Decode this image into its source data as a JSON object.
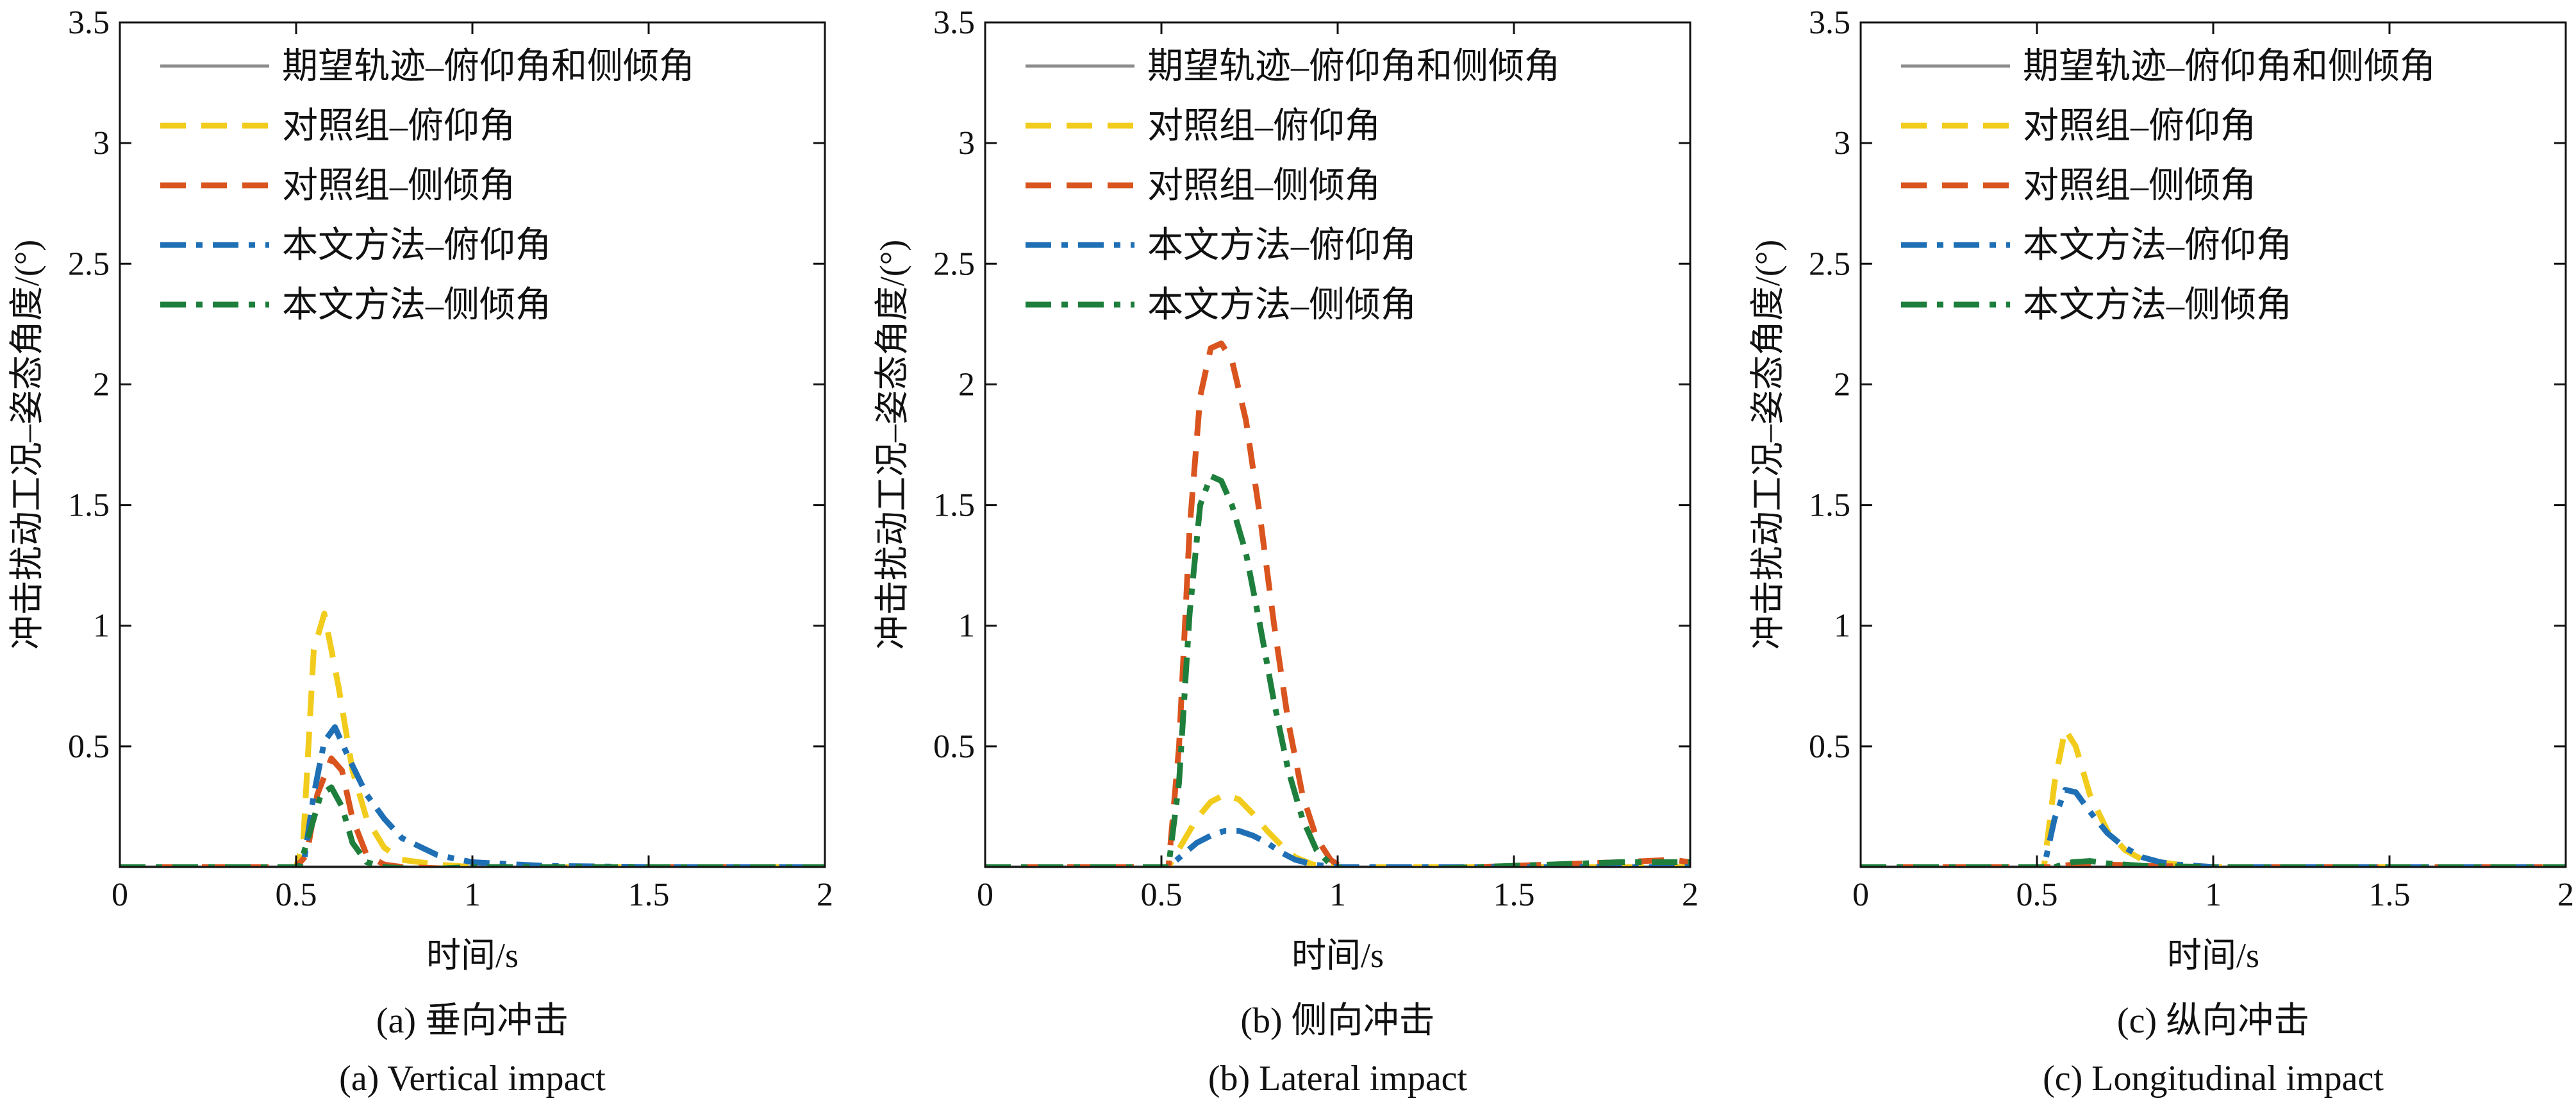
{
  "colors": {
    "desired": "#8c8c8c",
    "control_pitch": "#f2cc1c",
    "control_roll": "#d9541e",
    "proposed_pitch": "#1f6fb5",
    "proposed_roll": "#1e7f3c",
    "axis": "#111111"
  },
  "chart_data": [
    {
      "type": "line",
      "caption_cn": "(a) 垂向冲击",
      "caption_en": "(a) Vertical impact",
      "xlabel": "时间/s",
      "ylabel": "冲击扰动工况–姿态角度/(°)",
      "xlim": [
        0,
        2
      ],
      "ylim": [
        0,
        3.5
      ],
      "xticks": [
        "0",
        "0.5",
        "1",
        "1.5",
        "2"
      ],
      "yticks": [
        "0.5",
        "1",
        "1.5",
        "2",
        "2.5",
        "3",
        "3.5"
      ],
      "legend_position": "top-left",
      "series": [
        {
          "name": "期望轨迹–俯仰角和侧倾角",
          "style": "solid",
          "color_key": "desired",
          "x": [
            0,
            2
          ],
          "y": [
            0,
            0
          ]
        },
        {
          "name": "对照组–俯仰角",
          "style": "dash",
          "color_key": "control_pitch",
          "x": [
            0,
            0.5,
            0.52,
            0.55,
            0.58,
            0.62,
            0.66,
            0.7,
            0.75,
            0.8,
            0.9,
            1.0,
            1.5,
            2
          ],
          "y": [
            0,
            0,
            0.1,
            0.9,
            1.05,
            0.75,
            0.4,
            0.2,
            0.08,
            0.03,
            0.01,
            0,
            0,
            0
          ]
        },
        {
          "name": "对照组–侧倾角",
          "style": "dash",
          "color_key": "control_roll",
          "x": [
            0,
            0.5,
            0.53,
            0.56,
            0.6,
            0.63,
            0.66,
            0.7,
            0.75,
            0.8,
            1.0,
            1.5,
            2
          ],
          "y": [
            0,
            0,
            0.05,
            0.3,
            0.45,
            0.4,
            0.2,
            0.05,
            0.01,
            0,
            -0.01,
            0,
            0
          ]
        },
        {
          "name": "本文方法–俯仰角",
          "style": "dashdot",
          "color_key": "proposed_pitch",
          "x": [
            0,
            0.52,
            0.55,
            0.58,
            0.61,
            0.65,
            0.7,
            0.75,
            0.8,
            0.9,
            1.0,
            1.2,
            1.5,
            2
          ],
          "y": [
            0,
            0,
            0.3,
            0.52,
            0.58,
            0.45,
            0.3,
            0.2,
            0.12,
            0.05,
            0.02,
            0.005,
            0,
            0
          ]
        },
        {
          "name": "本文方法–侧倾角",
          "style": "dashdot",
          "color_key": "proposed_roll",
          "x": [
            0,
            0.51,
            0.54,
            0.57,
            0.6,
            0.63,
            0.66,
            0.7,
            0.75,
            0.85,
            1.0,
            2
          ],
          "y": [
            0,
            0,
            0.15,
            0.3,
            0.33,
            0.25,
            0.1,
            0.02,
            0,
            -0.01,
            0,
            0
          ]
        }
      ]
    },
    {
      "type": "line",
      "caption_cn": "(b) 侧向冲击",
      "caption_en": "(b) Lateral impact",
      "xlabel": "时间/s",
      "ylabel": "冲击扰动工况–姿态角度/(°)",
      "xlim": [
        0,
        2
      ],
      "ylim": [
        0,
        3.5
      ],
      "xticks": [
        "0",
        "0.5",
        "1",
        "1.5",
        "2"
      ],
      "yticks": [
        "0.5",
        "1",
        "1.5",
        "2",
        "2.5",
        "3",
        "3.5"
      ],
      "legend_position": "top-left",
      "series": [
        {
          "name": "期望轨迹–俯仰角和侧倾角",
          "style": "solid",
          "color_key": "desired",
          "x": [
            0,
            2
          ],
          "y": [
            0,
            0
          ]
        },
        {
          "name": "对照组–俯仰角",
          "style": "dash",
          "color_key": "control_pitch",
          "x": [
            0,
            0.52,
            0.56,
            0.6,
            0.64,
            0.68,
            0.72,
            0.76,
            0.8,
            0.84,
            0.88,
            0.93,
            1.0,
            2
          ],
          "y": [
            0,
            0,
            0.1,
            0.2,
            0.27,
            0.3,
            0.28,
            0.22,
            0.15,
            0.09,
            0.04,
            0.01,
            0,
            0
          ]
        },
        {
          "name": "对照组–侧倾角",
          "style": "dash",
          "color_key": "control_roll",
          "x": [
            0,
            0.52,
            0.55,
            0.58,
            0.61,
            0.64,
            0.67,
            0.7,
            0.74,
            0.78,
            0.82,
            0.86,
            0.9,
            0.94,
            0.98,
            1.02,
            1.1,
            1.2,
            1.4,
            1.6,
            1.8,
            1.95,
            2
          ],
          "y": [
            0,
            0,
            0.5,
            1.4,
            1.95,
            2.15,
            2.17,
            2.1,
            1.85,
            1.45,
            1.0,
            0.6,
            0.3,
            0.12,
            0.03,
            -0.01,
            -0.03,
            -0.02,
            0.0,
            0.01,
            0.02,
            0.03,
            0.02
          ]
        },
        {
          "name": "本文方法–俯仰角",
          "style": "dashdot",
          "color_key": "proposed_pitch",
          "x": [
            0,
            0.52,
            0.56,
            0.6,
            0.64,
            0.68,
            0.72,
            0.76,
            0.8,
            0.84,
            0.88,
            0.93,
            1.0,
            2
          ],
          "y": [
            0,
            0,
            0.05,
            0.1,
            0.13,
            0.15,
            0.15,
            0.13,
            0.1,
            0.06,
            0.03,
            0.01,
            0,
            0
          ]
        },
        {
          "name": "本文方法–侧倾角",
          "style": "dashdot",
          "color_key": "proposed_roll",
          "x": [
            0,
            0.52,
            0.55,
            0.58,
            0.61,
            0.64,
            0.67,
            0.7,
            0.74,
            0.78,
            0.82,
            0.86,
            0.9,
            0.94,
            0.98,
            1.02,
            1.1,
            1.2,
            1.4,
            1.6,
            1.8,
            1.95,
            2
          ],
          "y": [
            0,
            0,
            0.35,
            1.05,
            1.5,
            1.62,
            1.6,
            1.5,
            1.3,
            1.0,
            0.68,
            0.4,
            0.2,
            0.07,
            0.01,
            -0.01,
            -0.02,
            -0.01,
            0.0,
            0.01,
            0.02,
            0.02,
            0.02
          ]
        }
      ]
    },
    {
      "type": "line",
      "caption_cn": "(c) 纵向冲击",
      "caption_en": "(c) Longitudinal impact",
      "xlabel": "时间/s",
      "ylabel": "冲击扰动工况–姿态角度/(°)",
      "xlim": [
        0,
        2
      ],
      "ylim": [
        0,
        3.5
      ],
      "xticks": [
        "0",
        "0.5",
        "1",
        "1.5",
        "2"
      ],
      "yticks": [
        "0.5",
        "1",
        "1.5",
        "2",
        "2.5",
        "3",
        "3.5"
      ],
      "legend_position": "top-left",
      "series": [
        {
          "name": "期望轨迹–俯仰角和侧倾角",
          "style": "solid",
          "color_key": "desired",
          "x": [
            0,
            2
          ],
          "y": [
            0,
            0
          ]
        },
        {
          "name": "对照组–俯仰角",
          "style": "dash",
          "color_key": "control_pitch",
          "x": [
            0,
            0.52,
            0.55,
            0.58,
            0.61,
            0.65,
            0.7,
            0.75,
            0.8,
            0.9,
            1.0,
            1.2,
            2
          ],
          "y": [
            0,
            0,
            0.35,
            0.57,
            0.5,
            0.3,
            0.15,
            0.07,
            0.03,
            0.01,
            0,
            0,
            0
          ]
        },
        {
          "name": "对照组–侧倾角",
          "style": "dash",
          "color_key": "control_roll",
          "x": [
            0,
            0.55,
            0.6,
            0.65,
            0.7,
            0.8,
            1.0,
            2
          ],
          "y": [
            0,
            0,
            0.01,
            0.015,
            0.01,
            0.005,
            0,
            0
          ]
        },
        {
          "name": "本文方法–俯仰角",
          "style": "dashdot",
          "color_key": "proposed_pitch",
          "x": [
            0,
            0.52,
            0.55,
            0.58,
            0.61,
            0.65,
            0.7,
            0.75,
            0.8,
            0.85,
            0.9,
            1.0,
            1.2,
            2
          ],
          "y": [
            0,
            0,
            0.2,
            0.32,
            0.31,
            0.23,
            0.14,
            0.08,
            0.04,
            0.02,
            0.01,
            0,
            0,
            0
          ]
        },
        {
          "name": "本文方法–侧倾角",
          "style": "dashdot",
          "color_key": "proposed_roll",
          "x": [
            0,
            0.55,
            0.6,
            0.65,
            0.7,
            0.8,
            1.0,
            2
          ],
          "y": [
            0,
            0,
            0.02,
            0.025,
            0.015,
            0.005,
            0,
            0
          ]
        }
      ]
    }
  ]
}
